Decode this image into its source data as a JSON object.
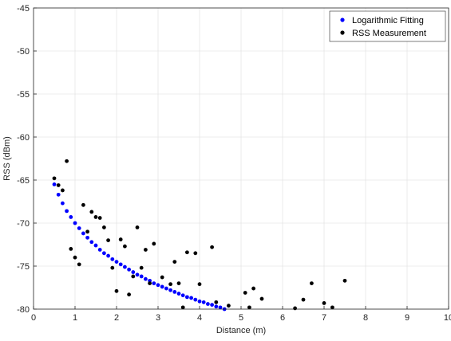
{
  "chart_data": {
    "type": "scatter",
    "xlabel": "Distance (m)",
    "ylabel": "RSS (dBm)",
    "xlim": [
      0,
      10
    ],
    "ylim": [
      -80,
      -45
    ],
    "x_ticks": [
      0,
      1,
      2,
      3,
      4,
      5,
      6,
      7,
      8,
      9,
      10
    ],
    "y_ticks": [
      -80,
      -75,
      -70,
      -65,
      -60,
      -55,
      -50,
      -45
    ],
    "x_tick_labels": [
      "0",
      "1",
      "2",
      "3",
      "4",
      "5",
      "6",
      "7",
      "8",
      "9",
      "10"
    ],
    "y_tick_labels": [
      "-80",
      "-75",
      "-70",
      "-65",
      "-60",
      "-55",
      "-50",
      "-45"
    ],
    "grid": true,
    "legend_position": "top-right",
    "series": [
      {
        "name": "Logarithmic Fitting",
        "color": "#0000ff",
        "x": [
          0.5,
          0.6,
          0.7,
          0.8,
          0.9,
          1.0,
          1.1,
          1.2,
          1.3,
          1.4,
          1.5,
          1.6,
          1.7,
          1.8,
          1.9,
          2.0,
          2.1,
          2.2,
          2.3,
          2.4,
          2.5,
          2.6,
          2.7,
          2.8,
          2.9,
          3.0,
          3.1,
          3.2,
          3.3,
          3.4,
          3.5,
          3.6,
          3.7,
          3.8,
          3.9,
          4.0,
          4.1,
          4.2,
          4.3,
          4.4,
          4.5,
          4.6
        ],
        "y": [
          -65.5,
          -66.7,
          -67.7,
          -68.6,
          -69.3,
          -70.0,
          -70.6,
          -71.2,
          -71.7,
          -72.2,
          -72.6,
          -73.1,
          -73.5,
          -73.8,
          -74.2,
          -74.5,
          -74.8,
          -75.1,
          -75.4,
          -75.7,
          -76.0,
          -76.2,
          -76.5,
          -76.7,
          -77.0,
          -77.2,
          -77.4,
          -77.6,
          -77.8,
          -78.0,
          -78.2,
          -78.4,
          -78.6,
          -78.7,
          -78.9,
          -79.1,
          -79.2,
          -79.4,
          -79.5,
          -79.7,
          -79.8,
          -80.0
        ]
      },
      {
        "name": "RSS Measurement",
        "color": "#000000",
        "x": [
          0.5,
          0.6,
          0.7,
          0.8,
          0.9,
          1.0,
          1.1,
          1.2,
          1.3,
          1.4,
          1.5,
          1.6,
          1.7,
          1.8,
          1.9,
          2.0,
          2.1,
          2.2,
          2.3,
          2.4,
          2.5,
          2.6,
          2.7,
          2.8,
          2.9,
          3.1,
          3.3,
          3.4,
          3.5,
          3.6,
          3.7,
          3.9,
          4.0,
          4.3,
          4.4,
          4.7,
          5.1,
          5.2,
          5.3,
          5.5,
          6.3,
          6.5,
          6.7,
          7.0,
          7.2,
          7.5
        ],
        "y": [
          -64.8,
          -65.6,
          -66.2,
          -62.8,
          -73.0,
          -74.0,
          -74.8,
          -67.9,
          -71.0,
          -68.7,
          -69.3,
          -69.4,
          -70.5,
          -72.0,
          -75.2,
          -77.9,
          -71.9,
          -72.7,
          -78.3,
          -76.2,
          -70.5,
          -75.2,
          -73.1,
          -77.0,
          -72.4,
          -76.3,
          -77.1,
          -74.5,
          -77.0,
          -79.8,
          -73.4,
          -73.5,
          -77.1,
          -72.8,
          -79.2,
          -79.6,
          -78.1,
          -79.8,
          -77.6,
          -78.8,
          -79.9,
          -78.9,
          -77.0,
          -79.3,
          -79.8,
          -76.7
        ]
      }
    ]
  }
}
